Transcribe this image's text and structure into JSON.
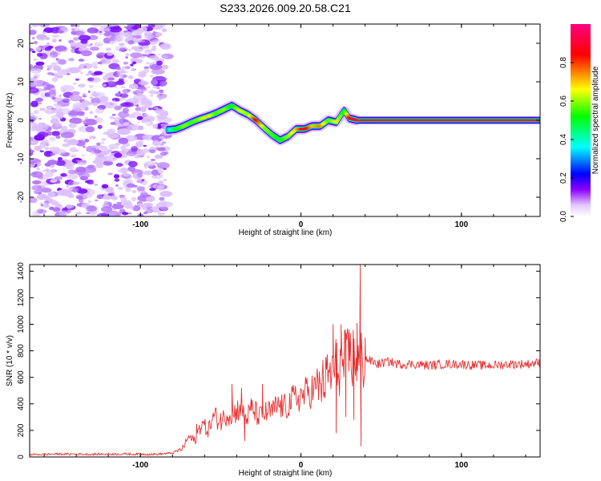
{
  "title": "S233.2026.009.20.58.C21",
  "chart_data": [
    {
      "type": "heatmap",
      "title": "S233.2026.009.20.58.C21",
      "xlabel": "Height of straight line (km)",
      "ylabel": "Frequency (Hz)",
      "xlim": [
        -169,
        149
      ],
      "ylim": [
        -25,
        25
      ],
      "xticks": [
        -100,
        0,
        100
      ],
      "yticks": [
        -20,
        -10,
        0,
        10,
        20
      ],
      "colorbar": {
        "label": "Normalized spectral amplitude",
        "range": [
          0,
          1
        ],
        "ticks": [
          "0.0",
          "0.2",
          "0.4",
          "0.6",
          "0.8"
        ],
        "colormap": [
          "#ffffff",
          "#8b00ff",
          "#0000ff",
          "#00ffff",
          "#00ff00",
          "#ffff00",
          "#ff0000",
          "#ff0080"
        ]
      },
      "noise_region_x": [
        -169,
        -83
      ],
      "track": {
        "x": [
          -83,
          -78,
          -73,
          -68,
          -63,
          -58,
          -53,
          -48,
          -43,
          -38,
          -33,
          -28,
          -23,
          -18,
          -13,
          -8,
          -3,
          2,
          7,
          12,
          17,
          22,
          27,
          30,
          35,
          40,
          50,
          60,
          80,
          100,
          120,
          149
        ],
        "freq": [
          -2.5,
          -2.3,
          -1.5,
          -0.5,
          0.3,
          1,
          1.8,
          2.8,
          3.8,
          2.5,
          1.5,
          0,
          -2,
          -3.8,
          -5.2,
          -4.2,
          -2.3,
          -2.3,
          -1.5,
          -1.5,
          0,
          -0.5,
          2.5,
          0.5,
          0,
          0,
          0,
          0,
          0,
          0,
          0,
          0
        ],
        "amplitude": [
          0.3,
          0.5,
          0.6,
          0.55,
          0.6,
          0.7,
          0.55,
          0.6,
          0.5,
          0.65,
          0.6,
          0.85,
          0.6,
          0.55,
          0.5,
          0.6,
          0.7,
          0.9,
          0.7,
          0.75,
          0.55,
          0.65,
          0.5,
          0.85,
          0.95,
          0.95,
          0.95,
          0.95,
          0.95,
          0.95,
          0.95,
          0.95
        ]
      }
    },
    {
      "type": "line",
      "xlabel": "Height of straight line (km)",
      "ylabel": "SNR (10 * v/v)",
      "xlim": [
        -169,
        149
      ],
      "ylim": [
        0,
        1450
      ],
      "xticks": [
        -100,
        0,
        100
      ],
      "yticks": [
        0,
        200,
        400,
        600,
        800,
        1000,
        1200,
        1400
      ],
      "color": "#e83030",
      "series": [
        {
          "name": "SNR",
          "x": [
            -169,
            -150,
            -130,
            -110,
            -90,
            -80,
            -74,
            -70,
            -66,
            -62,
            -58,
            -54,
            -50,
            -46,
            -42,
            -38,
            -34,
            -30,
            -26,
            -22,
            -18,
            -14,
            -10,
            -6,
            -2,
            2,
            6,
            10,
            14,
            18,
            22,
            26,
            30,
            34,
            36,
            38,
            40,
            44,
            48,
            55,
            60,
            70,
            80,
            90,
            100,
            110,
            120,
            130,
            140,
            149
          ],
          "values": [
            18,
            22,
            20,
            22,
            20,
            30,
            60,
            150,
            120,
            260,
            200,
            310,
            260,
            330,
            320,
            380,
            290,
            360,
            300,
            330,
            340,
            390,
            370,
            420,
            450,
            470,
            500,
            520,
            560,
            620,
            680,
            700,
            740,
            760,
            700,
            730,
            740,
            720,
            700,
            720,
            700,
            700,
            690,
            700,
            700,
            690,
            690,
            700,
            700,
            710
          ],
          "spikes": [
            {
              "x": -65,
              "y": 250
            },
            {
              "x": -50,
              "y": 330
            },
            {
              "x": -43,
              "y": 550
            },
            {
              "x": -37,
              "y": 520
            },
            {
              "x": -35,
              "y": 120
            },
            {
              "x": -31,
              "y": 440
            },
            {
              "x": -24,
              "y": 550
            },
            {
              "x": 20,
              "y": 1000
            },
            {
              "x": 22,
              "y": 180
            },
            {
              "x": 25,
              "y": 1000
            },
            {
              "x": 28,
              "y": 300
            },
            {
              "x": 30,
              "y": 960
            },
            {
              "x": 33,
              "y": 280
            },
            {
              "x": 35,
              "y": 1010
            },
            {
              "x": 37,
              "y": 1450
            },
            {
              "x": 37.5,
              "y": 80
            },
            {
              "x": 40,
              "y": 900
            }
          ]
        }
      ]
    }
  ]
}
